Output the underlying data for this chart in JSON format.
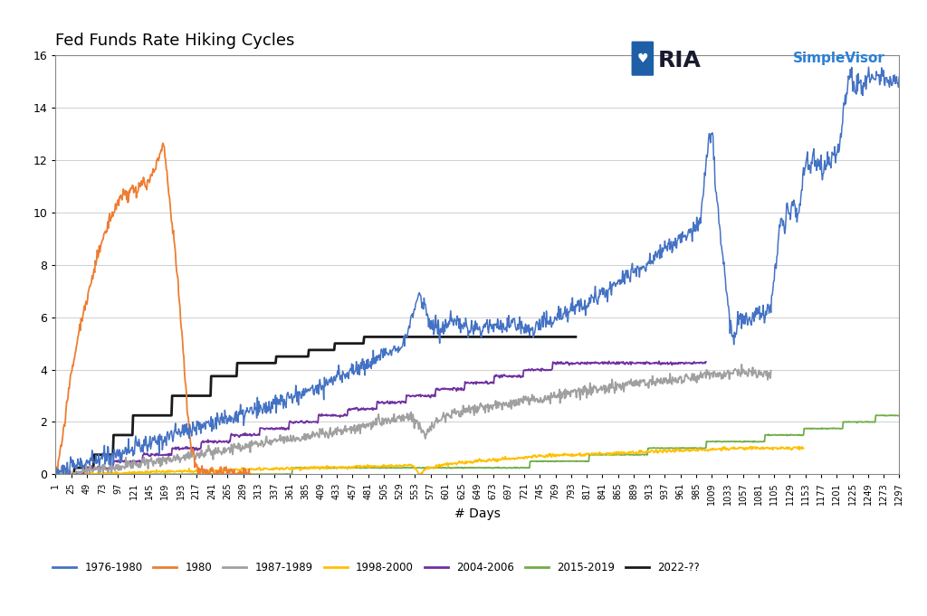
{
  "title": "Fed Funds Rate Hiking Cycles",
  "xlabel": "# Days",
  "xlim": [
    1,
    1297
  ],
  "ylim": [
    0,
    16
  ],
  "yticks": [
    0,
    2,
    4,
    6,
    8,
    10,
    12,
    14,
    16
  ],
  "xticks": [
    1,
    25,
    49,
    73,
    97,
    121,
    145,
    169,
    193,
    217,
    241,
    265,
    289,
    313,
    337,
    361,
    385,
    409,
    433,
    457,
    481,
    505,
    529,
    553,
    577,
    601,
    625,
    649,
    673,
    697,
    721,
    745,
    769,
    793,
    817,
    841,
    865,
    889,
    913,
    937,
    961,
    985,
    1009,
    1033,
    1057,
    1081,
    1105,
    1129,
    1153,
    1177,
    1201,
    1225,
    1249,
    1273,
    1297
  ],
  "background_color": "#ffffff",
  "grid_color": "#d0d0d0",
  "title_fontsize": 13,
  "tick_fontsize": 7,
  "legend_labels": [
    "1976-1980",
    "1980",
    "1987-1989",
    "1998-2000",
    "2004-2006",
    "2015-2019",
    "2022-??"
  ],
  "legend_colors": [
    "#4472c4",
    "#ed7d31",
    "#a0a0a0",
    "#ffc000",
    "#7030a0",
    "#70ad47",
    "#1a1a1a"
  ]
}
